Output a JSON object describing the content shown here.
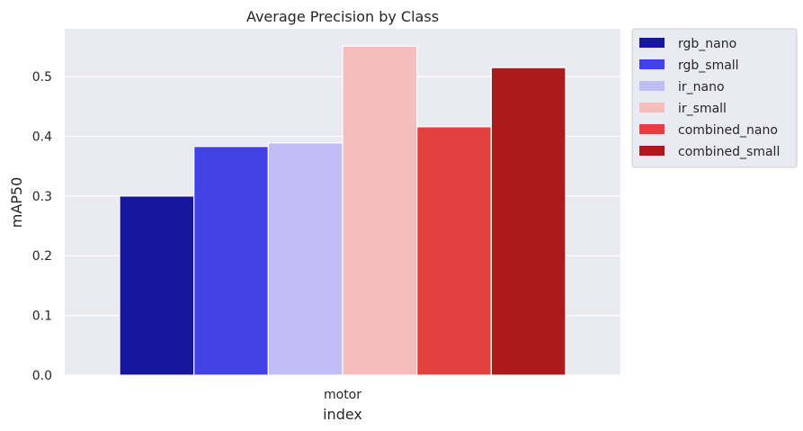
{
  "chart_data": {
    "type": "bar",
    "title": "Average Precision by Class",
    "xlabel": "index",
    "ylabel": "mAP50",
    "categories": [
      "motor"
    ],
    "ylim": [
      0,
      0.58
    ],
    "yticks": [
      0.0,
      0.1,
      0.2,
      0.3,
      0.4,
      0.5
    ],
    "ytick_labels": [
      "0.0",
      "0.1",
      "0.2",
      "0.3",
      "0.4",
      "0.5"
    ],
    "grid": true,
    "legend_position": "outside top-right",
    "background": "#eaeaf2",
    "series": [
      {
        "name": "rgb_nano",
        "values": [
          0.3
        ],
        "color": "#16169e"
      },
      {
        "name": "rgb_small",
        "values": [
          0.383
        ],
        "color": "#4342e6"
      },
      {
        "name": "ir_nano",
        "values": [
          0.389
        ],
        "color": "#bfbff6"
      },
      {
        "name": "ir_small",
        "values": [
          0.551
        ],
        "color": "#f5bdbe"
      },
      {
        "name": "combined_nano",
        "values": [
          0.416
        ],
        "color": "#e3403f"
      },
      {
        "name": "combined_small",
        "values": [
          0.515
        ],
        "color": "#ad1a1b"
      }
    ]
  }
}
